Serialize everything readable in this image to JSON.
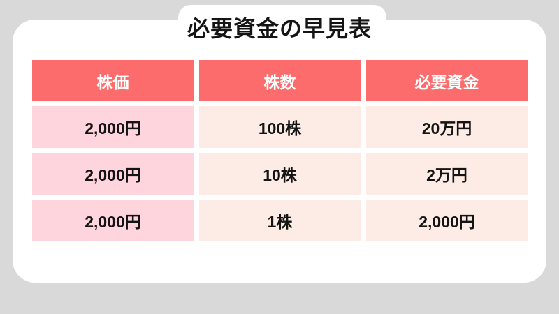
{
  "page": {
    "title": "必要資金の早見表"
  },
  "colors": {
    "background": "#D9D9D9",
    "card": "#FFFFFF",
    "header_bg": "#FC6C6C",
    "header_text": "#FFFFFF",
    "col1_bg": "#FFD5DD",
    "cell_bg": "#FDEBE5",
    "body_text": "#141414"
  },
  "table": {
    "headers": [
      "株価",
      "株数",
      "必要資金"
    ],
    "rows": [
      [
        "2,000円",
        "100株",
        "20万円"
      ],
      [
        "2,000円",
        "10株",
        "2万円"
      ],
      [
        "2,000円",
        "1株",
        "2,000円"
      ]
    ]
  },
  "chart_data": {
    "type": "table",
    "title": "必要資金の早見表",
    "columns": [
      "株価",
      "株数",
      "必要資金"
    ],
    "rows": [
      [
        "2,000円",
        "100株",
        "20万円"
      ],
      [
        "2,000円",
        "10株",
        "2万円"
      ],
      [
        "2,000円",
        "1株",
        "2,000円"
      ]
    ]
  }
}
